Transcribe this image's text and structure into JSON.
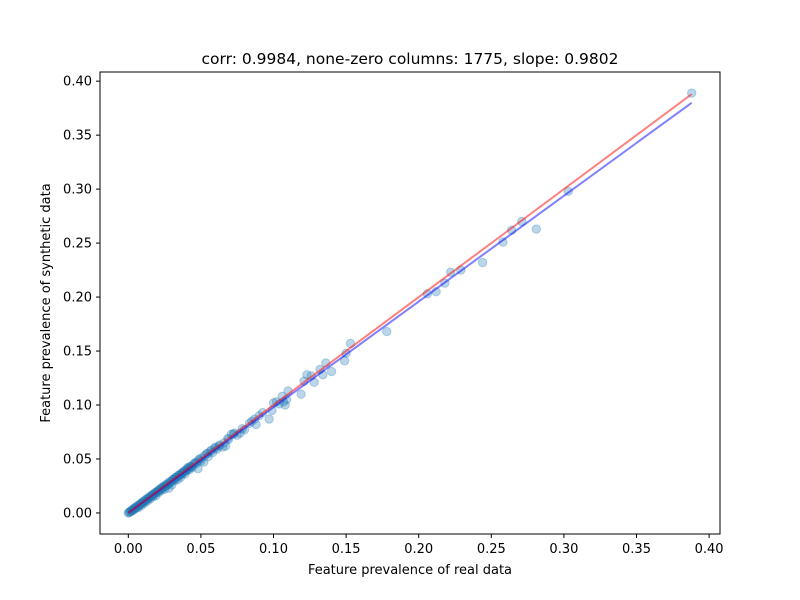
{
  "chart_data": {
    "type": "scatter",
    "title": "corr: 0.9984, none-zero columns: 1775, slope: 0.9802",
    "xlabel": "Feature prevalence of real data",
    "ylabel": "Feature prevalence of synthetic data",
    "xlim": [
      -0.0195,
      0.4075
    ],
    "ylim": [
      -0.0195,
      0.4085
    ],
    "x_ticks": [
      "0.00",
      "0.05",
      "0.10",
      "0.15",
      "0.20",
      "0.25",
      "0.30",
      "0.35",
      "0.40"
    ],
    "y_ticks": [
      "0.00",
      "0.05",
      "0.10",
      "0.15",
      "0.20",
      "0.25",
      "0.30",
      "0.35",
      "0.40"
    ],
    "grid": false,
    "colors": {
      "points": "#1f77b4",
      "fit_line": "#0000ff",
      "identity_line": "#ff0000"
    },
    "lines": [
      {
        "name": "",
        "color": "#0000ff",
        "x": [
          0.0,
          0.388
        ],
        "y": [
          0.0,
          0.38
        ]
      },
      {
        "name": "",
        "color": "#ff0000",
        "x": [
          0.0,
          0.388
        ],
        "y": [
          0.0,
          0.388
        ]
      }
    ],
    "points": [
      [
        0.388,
        0.389
      ],
      [
        0.303,
        0.298
      ],
      [
        0.281,
        0.263
      ],
      [
        0.271,
        0.27
      ],
      [
        0.264,
        0.262
      ],
      [
        0.258,
        0.251
      ],
      [
        0.244,
        0.232
      ],
      [
        0.229,
        0.225
      ],
      [
        0.222,
        0.223
      ],
      [
        0.218,
        0.213
      ],
      [
        0.212,
        0.205
      ],
      [
        0.206,
        0.203
      ],
      [
        0.178,
        0.168
      ],
      [
        0.153,
        0.157
      ],
      [
        0.15,
        0.148
      ],
      [
        0.149,
        0.141
      ],
      [
        0.14,
        0.131
      ],
      [
        0.136,
        0.139
      ],
      [
        0.134,
        0.128
      ],
      [
        0.132,
        0.133
      ],
      [
        0.128,
        0.121
      ],
      [
        0.126,
        0.127
      ],
      [
        0.123,
        0.128
      ],
      [
        0.121,
        0.122
      ],
      [
        0.119,
        0.11
      ],
      [
        0.11,
        0.113
      ],
      [
        0.109,
        0.105
      ],
      [
        0.108,
        0.1
      ],
      [
        0.107,
        0.103
      ],
      [
        0.106,
        0.108
      ],
      [
        0.104,
        0.101
      ],
      [
        0.102,
        0.103
      ],
      [
        0.1,
        0.102
      ],
      [
        0.099,
        0.095
      ],
      [
        0.097,
        0.087
      ],
      [
        0.09,
        0.09
      ],
      [
        0.088,
        0.082
      ],
      [
        0.087,
        0.087
      ],
      [
        0.085,
        0.085
      ],
      [
        0.08,
        0.077
      ],
      [
        0.077,
        0.074
      ],
      [
        0.075,
        0.072
      ],
      [
        0.073,
        0.074
      ],
      [
        0.071,
        0.073
      ],
      [
        0.069,
        0.068
      ],
      [
        0.067,
        0.062
      ],
      [
        0.066,
        0.065
      ],
      [
        0.065,
        0.061
      ],
      [
        0.063,
        0.063
      ],
      [
        0.061,
        0.059
      ],
      [
        0.06,
        0.061
      ],
      [
        0.058,
        0.056
      ],
      [
        0.057,
        0.058
      ],
      [
        0.055,
        0.052
      ],
      [
        0.054,
        0.055
      ],
      [
        0.052,
        0.047
      ],
      [
        0.05,
        0.048
      ],
      [
        0.049,
        0.05
      ],
      [
        0.048,
        0.041
      ],
      [
        0.047,
        0.046
      ],
      [
        0.045,
        0.045
      ],
      [
        0.044,
        0.042
      ],
      [
        0.043,
        0.043
      ],
      [
        0.042,
        0.04
      ],
      [
        0.041,
        0.042
      ],
      [
        0.04,
        0.039
      ],
      [
        0.039,
        0.036
      ],
      [
        0.038,
        0.038
      ],
      [
        0.037,
        0.036
      ],
      [
        0.036,
        0.033
      ],
      [
        0.035,
        0.035
      ],
      [
        0.034,
        0.031
      ],
      [
        0.033,
        0.033
      ],
      [
        0.032,
        0.03
      ],
      [
        0.031,
        0.031
      ],
      [
        0.03,
        0.026
      ],
      [
        0.029,
        0.028
      ],
      [
        0.028,
        0.023
      ],
      [
        0.027,
        0.026
      ],
      [
        0.026,
        0.025
      ],
      [
        0.025,
        0.022
      ],
      [
        0.024,
        0.024
      ],
      [
        0.023,
        0.021
      ],
      [
        0.022,
        0.022
      ],
      [
        0.021,
        0.019
      ],
      [
        0.02,
        0.02
      ],
      [
        0.019,
        0.016
      ],
      [
        0.018,
        0.018
      ],
      [
        0.017,
        0.015
      ],
      [
        0.016,
        0.016
      ],
      [
        0.015,
        0.013
      ],
      [
        0.014,
        0.014
      ],
      [
        0.013,
        0.011
      ],
      [
        0.012,
        0.012
      ],
      [
        0.011,
        0.009
      ],
      [
        0.01,
        0.01
      ],
      [
        0.009,
        0.007
      ],
      [
        0.008,
        0.008
      ],
      [
        0.007,
        0.005
      ],
      [
        0.006,
        0.006
      ],
      [
        0.005,
        0.004
      ],
      [
        0.004,
        0.004
      ],
      [
        0.003,
        0.002
      ],
      [
        0.002,
        0.002
      ],
      [
        0.001,
        0.001
      ],
      [
        0.0005,
        0.0004
      ],
      [
        0.0,
        0.0
      ],
      [
        0.0015,
        0.0012
      ],
      [
        0.0025,
        0.003
      ],
      [
        0.0035,
        0.003
      ],
      [
        0.0045,
        0.005
      ],
      [
        0.0055,
        0.005
      ],
      [
        0.0065,
        0.007
      ],
      [
        0.0075,
        0.007
      ],
      [
        0.0085,
        0.009
      ],
      [
        0.0095,
        0.009
      ],
      [
        0.0105,
        0.011
      ],
      [
        0.0115,
        0.011
      ],
      [
        0.0125,
        0.013
      ],
      [
        0.0135,
        0.013
      ],
      [
        0.0145,
        0.015
      ],
      [
        0.0155,
        0.015
      ],
      [
        0.0165,
        0.017
      ],
      [
        0.0175,
        0.017
      ],
      [
        0.0185,
        0.019
      ],
      [
        0.0195,
        0.019
      ],
      [
        0.0205,
        0.021
      ],
      [
        0.0215,
        0.021
      ],
      [
        0.0225,
        0.023
      ],
      [
        0.0235,
        0.023
      ],
      [
        0.0245,
        0.025
      ],
      [
        0.0255,
        0.025
      ],
      [
        0.0265,
        0.027
      ],
      [
        0.0275,
        0.027
      ],
      [
        0.0285,
        0.029
      ],
      [
        0.0295,
        0.029
      ],
      [
        0.0305,
        0.031
      ],
      [
        0.0315,
        0.031
      ],
      [
        0.0325,
        0.033
      ],
      [
        0.0335,
        0.033
      ],
      [
        0.0345,
        0.035
      ],
      [
        0.0355,
        0.035
      ],
      [
        0.0365,
        0.037
      ],
      [
        0.0375,
        0.037
      ],
      [
        0.0385,
        0.039
      ],
      [
        0.0395,
        0.039
      ],
      [
        0.0405,
        0.041
      ],
      [
        0.0415,
        0.041
      ],
      [
        0.0425,
        0.043
      ],
      [
        0.0435,
        0.043
      ],
      [
        0.0455,
        0.046
      ],
      [
        0.0465,
        0.047
      ],
      [
        0.0485,
        0.049
      ],
      [
        0.0505,
        0.051
      ],
      [
        0.0525,
        0.053
      ],
      [
        0.0545,
        0.055
      ],
      [
        0.0565,
        0.057
      ],
      [
        0.0595,
        0.06
      ],
      [
        0.0625,
        0.062
      ],
      [
        0.0685,
        0.069
      ],
      [
        0.0725,
        0.073
      ],
      [
        0.0785,
        0.078
      ],
      [
        0.0835,
        0.083
      ],
      [
        0.0925,
        0.093
      ]
    ]
  }
}
